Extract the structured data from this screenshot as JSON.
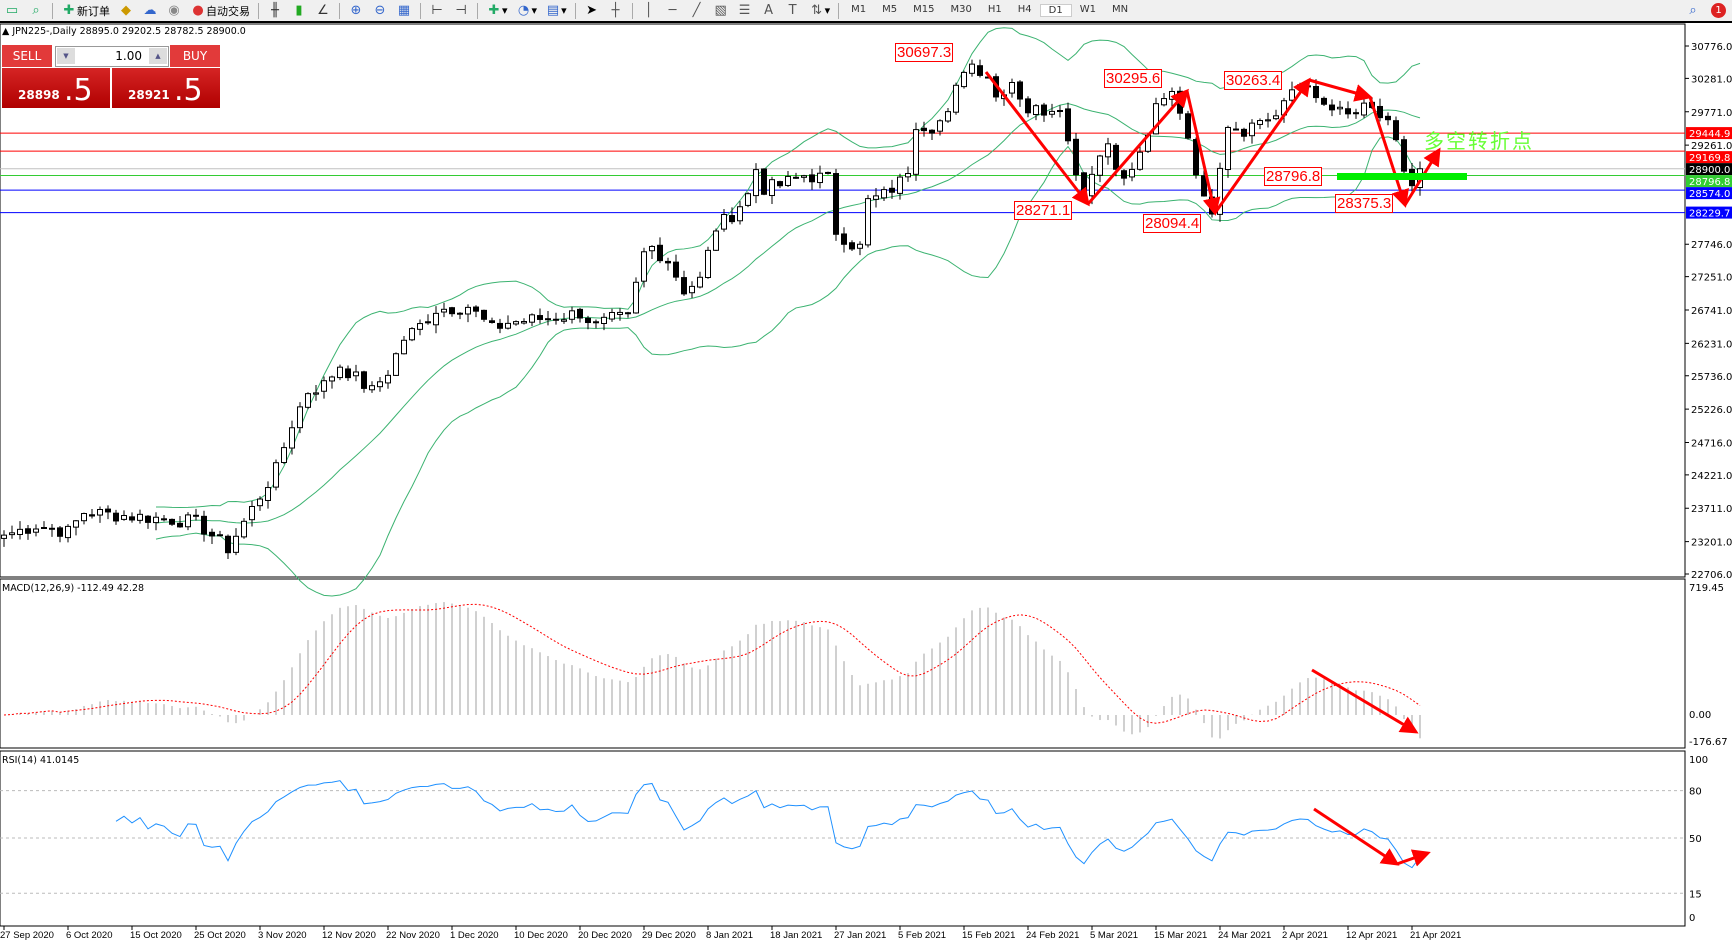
{
  "toolbar": {
    "new_order": "新订单",
    "auto_trading": "自动交易",
    "timeframes": [
      "M1",
      "M5",
      "M15",
      "M30",
      "H1",
      "H4",
      "D1",
      "W1",
      "MN"
    ],
    "active_timeframe": "D1",
    "notification_count": "1"
  },
  "chart": {
    "title": "JPN225-,Daily  28895.0 29202.5 28782.5 28900.0",
    "price_axis": [
      "30776.0",
      "30281.0",
      "29771.0",
      "29261.0",
      "27746.0",
      "27251.0",
      "26741.0",
      "26231.0",
      "25736.0",
      "25226.0",
      "24716.0",
      "24221.0",
      "23711.0",
      "23201.0",
      "22706.0"
    ],
    "price_range": [
      22706.0,
      30776.0
    ],
    "levels": [
      {
        "price": 29444.9,
        "label": "29444.9",
        "color": "#ff0000"
      },
      {
        "price": 29169.8,
        "label": "29169.8",
        "color": "#ff0000"
      },
      {
        "price": 28900.0,
        "label": "28900.0",
        "color": "#000000",
        "line": "#c0c0c0"
      },
      {
        "price": 28796.8,
        "label": "28796.8",
        "color": "#33cc33"
      },
      {
        "price": 28574.0,
        "label": "28574.0",
        "color": "#0000ff"
      },
      {
        "price": 28229.7,
        "label": "28229.7",
        "color": "#0000ff"
      }
    ],
    "annotations": [
      "30697.3",
      "30295.6",
      "30263.4",
      "28271.1",
      "28094.4",
      "28796.8",
      "28375.3"
    ],
    "callout_text": "多空转折点",
    "callout_color": "#66ff33",
    "bollinger_color": "#3cb371",
    "close_series": [
      [
        0,
        23300
      ],
      [
        4,
        23450
      ],
      [
        8,
        23350
      ],
      [
        10,
        23650
      ],
      [
        20,
        23550
      ],
      [
        24,
        23500
      ],
      [
        26,
        23300
      ],
      [
        28,
        23100
      ],
      [
        30,
        23500
      ],
      [
        32,
        23900
      ],
      [
        34,
        24300
      ],
      [
        36,
        25000
      ],
      [
        38,
        25500
      ],
      [
        40,
        25600
      ],
      [
        42,
        25900
      ],
      [
        44,
        25700
      ],
      [
        46,
        25500
      ],
      [
        48,
        25800
      ],
      [
        50,
        26300
      ],
      [
        52,
        26500
      ],
      [
        54,
        26750
      ],
      [
        58,
        26800
      ],
      [
        61,
        26450
      ],
      [
        63,
        26550
      ],
      [
        70,
        26650
      ],
      [
        72,
        26700
      ],
      [
        74,
        26500
      ],
      [
        76,
        26600
      ],
      [
        78,
        26620
      ],
      [
        80,
        27600
      ],
      [
        81,
        27700
      ],
      [
        83,
        27500
      ],
      [
        85,
        27050
      ],
      [
        87,
        27200
      ],
      [
        89,
        28000
      ],
      [
        91,
        28200
      ],
      [
        93,
        28500
      ],
      [
        94,
        28900
      ],
      [
        95,
        28600
      ],
      [
        97,
        28650
      ],
      [
        100,
        28800
      ],
      [
        103,
        28750
      ],
      [
        104,
        27950
      ],
      [
        106,
        27750
      ],
      [
        107,
        27700
      ],
      [
        108,
        28400
      ],
      [
        110,
        28500
      ],
      [
        112,
        28700
      ],
      [
        113,
        28900
      ],
      [
        114,
        29600
      ],
      [
        116,
        29550
      ],
      [
        118,
        29700
      ],
      [
        119,
        30100
      ],
      [
        120,
        30450
      ],
      [
        121,
        30500
      ],
      [
        123,
        30350
      ],
      [
        124,
        30000
      ],
      [
        126,
        30250
      ],
      [
        128,
        29800
      ],
      [
        130,
        29800
      ],
      [
        132,
        29900
      ],
      [
        133,
        29300
      ],
      [
        135,
        28500
      ],
      [
        136,
        28900
      ],
      [
        138,
        29300
      ],
      [
        140,
        28700
      ],
      [
        142,
        29100
      ],
      [
        144,
        29800
      ],
      [
        146,
        30050
      ],
      [
        147,
        29800
      ],
      [
        148,
        29400
      ],
      [
        149,
        28900
      ],
      [
        150,
        28400
      ],
      [
        151,
        28300
      ],
      [
        152,
        29000
      ],
      [
        153,
        29600
      ],
      [
        155,
        29500
      ],
      [
        157,
        29650
      ],
      [
        159,
        29700
      ],
      [
        160,
        29850
      ],
      [
        161,
        30100
      ],
      [
        162,
        30200
      ],
      [
        163,
        30250
      ],
      [
        164,
        29900
      ],
      [
        166,
        29800
      ],
      [
        168,
        29700
      ],
      [
        170,
        29800
      ],
      [
        172,
        29700
      ],
      [
        173,
        29650
      ],
      [
        174,
        29300
      ],
      [
        175,
        28800
      ],
      [
        176,
        28550
      ],
      [
        177,
        28900
      ]
    ],
    "dates": [
      "27 Sep 2020",
      "6 Oct 2020",
      "15 Oct 2020",
      "25 Oct 2020",
      "3 Nov 2020",
      "12 Nov 2020",
      "22 Nov 2020",
      "1 Dec 2020",
      "10 Dec 2020",
      "20 Dec 2020",
      "29 Dec 2020",
      "8 Jan 2021",
      "18 Jan 2021",
      "27 Jan 2021",
      "5 Feb 2021",
      "15 Feb 2021",
      "24 Feb 2021",
      "5 Mar 2021",
      "15 Mar 2021",
      "24 Mar 2021",
      "2 Apr 2021",
      "12 Apr 2021",
      "21 Apr 2021"
    ]
  },
  "trade_panel": {
    "sell_label": "SELL",
    "buy_label": "BUY",
    "lot": "1.00",
    "sell_price_main": "28898",
    "sell_price_pip": ".5",
    "buy_price_main": "28921",
    "buy_price_pip": ".5"
  },
  "macd": {
    "label": "MACD(12,26,9) -112.49 42.28",
    "axis": [
      "719.45",
      "0.00",
      "-176.67"
    ],
    "signal_color": "#ff0000",
    "hist_color": "#c0c0c0"
  },
  "rsi": {
    "label": "RSI(14) 41.0145",
    "axis": [
      "100",
      "80",
      "50",
      "15",
      "0"
    ],
    "color": "#1e90ff"
  }
}
